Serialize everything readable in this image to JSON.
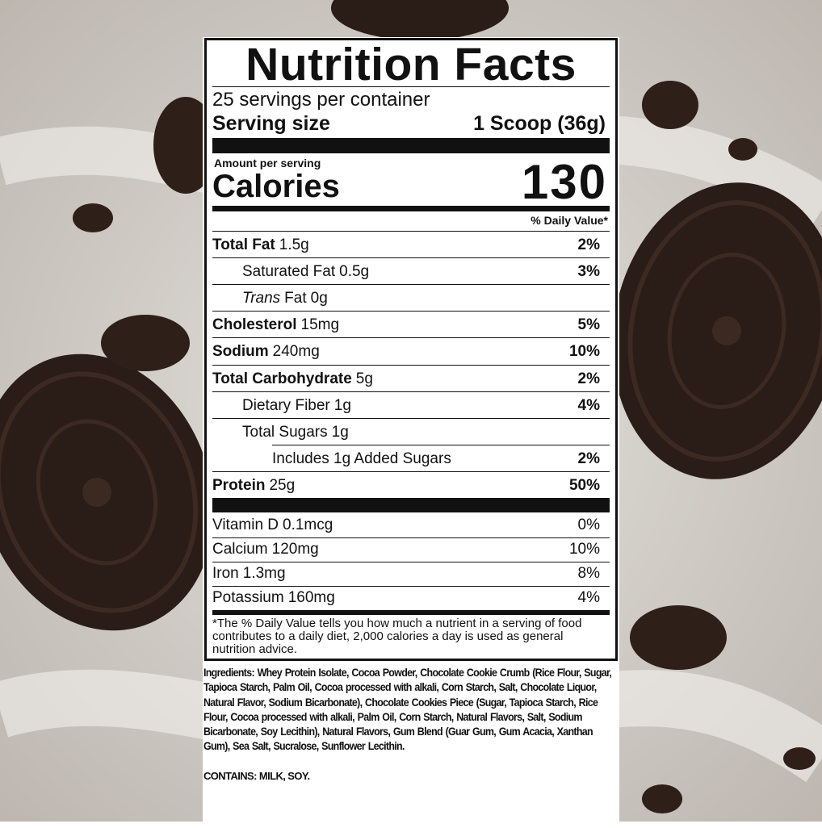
{
  "title": "Nutrition Facts",
  "servings": "25 servings per container",
  "serving_size": {
    "label": "Serving size",
    "value": "1 Scoop (36g)"
  },
  "calories": {
    "note": "Amount per serving",
    "label": "Calories",
    "value": "130"
  },
  "dv_header": "% Daily Value*",
  "nutrients": [
    {
      "name": "Total Fat",
      "amount": "1.5g",
      "dv": "2%",
      "indent": 0
    },
    {
      "name": "Saturated Fat",
      "amount": "0.5g",
      "dv": "3%",
      "indent": 1
    },
    {
      "prefix_italic": "Trans",
      "name": "Fat",
      "amount": "0g",
      "indent": 1
    },
    {
      "name": "Cholesterol",
      "amount": "15mg",
      "dv": "5%",
      "indent": 0
    },
    {
      "name": "Sodium",
      "amount": "240mg",
      "dv": "10%",
      "indent": 0
    },
    {
      "name": "Total Carbohydrate",
      "amount": "5g",
      "dv": "2%",
      "indent": 0
    },
    {
      "name": "Dietary Fiber",
      "amount": "1g",
      "dv": "4%",
      "indent": 1
    },
    {
      "name": "Total Sugars",
      "amount": "1g",
      "indent": 1
    },
    {
      "name": "Includes 1g Added Sugars",
      "dv": "2%",
      "indent": 2
    },
    {
      "name": "Protein",
      "amount": "25g",
      "dv": "50%",
      "indent": 0
    }
  ],
  "vitamins": [
    {
      "name": "Vitamin D",
      "amount": "0.1mcg",
      "dv": "0%"
    },
    {
      "name": "Calcium",
      "amount": "120mg",
      "dv": "10%"
    },
    {
      "name": "Iron",
      "amount": "1.3mg",
      "dv": "8%"
    },
    {
      "name": "Potassium",
      "amount": "160mg",
      "dv": "4%"
    }
  ],
  "footnote": "*The % Daily Value tells you how much a nutrient in a serving of food contributes to a daily diet, 2,000 calories a day is used as general nutrition advice.",
  "ingredients": "Ingredients: Whey Protein Isolate, Cocoa Powder, Chocolate Cookie Crumb (Rice Flour, Sugar, Tapioca Starch, Palm Oil, Cocoa processed with alkali, Corn Starch, Salt, Chocolate Liquor, Natural Flavor, Sodium Bicarbonate), Chocolate Cookies Piece (Sugar, Tapioca Starch, Rice Flour, Cocoa processed with alkali, Palm Oil, Corn Starch, Natural Flavors, Salt, Sodium Bicarbonate, Soy Lecithin), Natural Flavors, Gum Blend (Guar Gum, Gum Acacia, Xanthan Gum), Sea Salt, Sucralose, Sunflower Lecithin.",
  "contains": "CONTAINS: MILK, SOY."
}
